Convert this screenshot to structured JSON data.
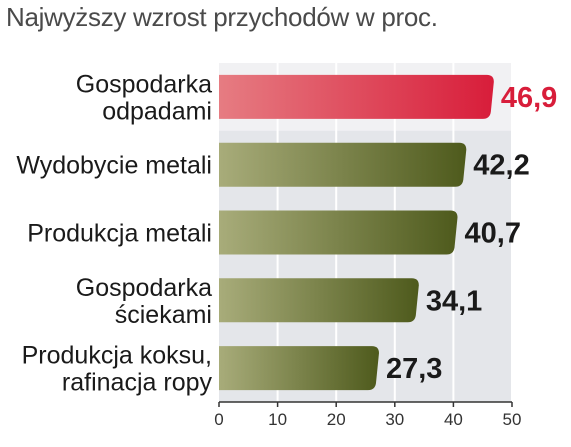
{
  "chart_data": {
    "type": "bar",
    "orientation": "horizontal",
    "title": "Najwyższy wzrost przychodów w proc.",
    "categories": [
      [
        "Gospodarka",
        "odpadami"
      ],
      [
        "Wydobycie metali"
      ],
      [
        "Produkcja metali"
      ],
      [
        "Gospodarka",
        "ściekami"
      ],
      [
        "Produkcja koksu,",
        "rafinacja ropy"
      ]
    ],
    "values": [
      46.9,
      42.2,
      40.7,
      34.1,
      27.3
    ],
    "value_labels": [
      "46,9",
      "42,2",
      "40,7",
      "34,1",
      "27,3"
    ],
    "xlim": [
      0,
      50
    ],
    "xticks": [
      0,
      10,
      20,
      30,
      40,
      50
    ],
    "xtick_labels": [
      "0",
      "10",
      "20",
      "30",
      "40",
      "50"
    ],
    "grid": true,
    "highlight_index": 0
  },
  "colors": {
    "highlight_bar_start": "#e67c82",
    "highlight_bar_end": "#d81d3a",
    "highlight_value": "#d81d3a",
    "bar_start": "#a8ac7a",
    "bar_end": "#4e5a1c",
    "value": "#1a1a1a",
    "plot_background": "#e4e6ea",
    "highlight_band": "#f1f1f3",
    "gridline": "#ffffff",
    "axis": "#333333"
  }
}
